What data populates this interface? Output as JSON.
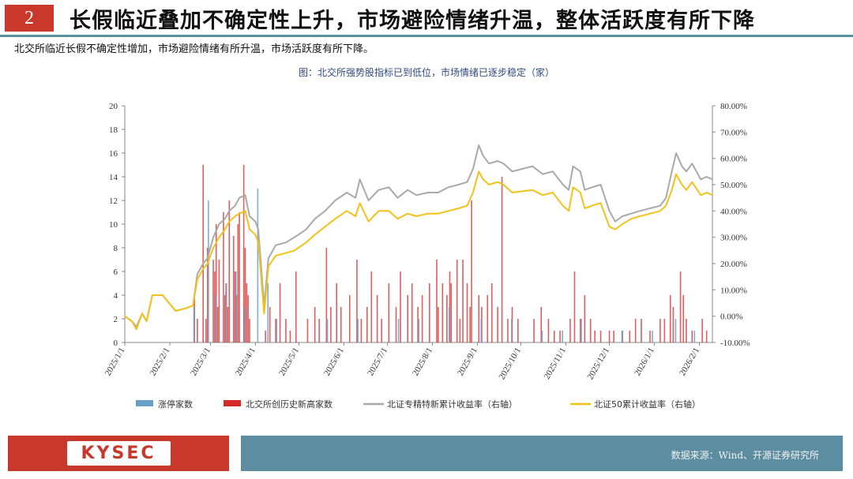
{
  "header": {
    "number": "2",
    "title": "长假临近叠加不确定性上升，市场避险情绪升温，整体活跃度有所下降",
    "subtitle": "北交所临近长假不确定性增加，市场避险情绪有所升温，市场活跃度有所下降。"
  },
  "footer": {
    "logo": "KYSEC",
    "source": "数据来源：Wind、开源证券研究所"
  },
  "colors": {
    "brand_red": "#c8392b",
    "brand_teal": "#5d8da0",
    "limit_up": "#6aa0c8",
    "new_high": "#d42a2a",
    "specialized": "#a9a9a9",
    "bz50": "#f2c21b"
  },
  "chart_data": {
    "type": "bar+line",
    "title": "图：北交所强势股指标已到低位，市场情绪已逐步稳定（家）",
    "x_start": "2025-01-01",
    "x_end": "2026-02-10",
    "x_ticks": [
      "2025/1/1",
      "2025/2/1",
      "2025/3/1",
      "2025/4/1",
      "2025/5/1",
      "2025/6/1",
      "2025/7/1",
      "2025/8/1",
      "2025/9/1",
      "2025/10/1",
      "2025/11/1",
      "2025/12/1",
      "2026/1/1",
      "2026/2/1"
    ],
    "y_left": {
      "min": 0,
      "max": 20,
      "ticks": [
        0,
        2,
        4,
        6,
        8,
        10,
        12,
        14,
        16,
        18,
        20
      ]
    },
    "y_right": {
      "min": -0.1,
      "max": 0.8,
      "ticks": [
        "-10.00%",
        "0.00%",
        "10.00%",
        "20.00%",
        "30.00%",
        "40.00%",
        "50.00%",
        "60.00%",
        "70.00%",
        "80.00%"
      ]
    },
    "legend": [
      "涨停家数",
      "北交所创历史新高家数",
      "北证专精特新累计收益率（右轴）",
      "北证50累计收益率（右轴）"
    ],
    "bars_limit_up": [
      [
        "2025-02-17",
        3
      ],
      [
        "2025-02-27",
        12
      ],
      [
        "2025-03-04",
        4
      ],
      [
        "2025-03-11",
        5
      ],
      [
        "2025-03-18",
        6
      ],
      [
        "2025-03-24",
        3
      ],
      [
        "2025-04-02",
        13
      ],
      [
        "2025-04-09",
        5
      ],
      [
        "2025-04-15",
        2
      ],
      [
        "2025-05-20",
        2
      ],
      [
        "2025-06-10",
        2
      ],
      [
        "2025-07-08",
        2
      ],
      [
        "2025-07-22",
        2
      ],
      [
        "2025-08-12",
        3
      ],
      [
        "2025-09-03",
        2
      ],
      [
        "2025-09-24",
        2
      ],
      [
        "2025-10-15",
        1
      ],
      [
        "2025-10-29",
        1
      ],
      [
        "2025-11-11",
        2
      ],
      [
        "2025-12-09",
        1
      ],
      [
        "2025-12-30",
        1
      ],
      [
        "2026-01-15",
        2
      ],
      [
        "2026-01-28",
        1
      ]
    ],
    "bars_new_high": [
      [
        "2025-02-18",
        4
      ],
      [
        "2025-02-20",
        2
      ],
      [
        "2025-02-24",
        15
      ],
      [
        "2025-02-26",
        2
      ],
      [
        "2025-02-27",
        8
      ],
      [
        "2025-03-03",
        7
      ],
      [
        "2025-03-04",
        6
      ],
      [
        "2025-03-05",
        10
      ],
      [
        "2025-03-06",
        3
      ],
      [
        "2025-03-07",
        7
      ],
      [
        "2025-03-10",
        11
      ],
      [
        "2025-03-11",
        4
      ],
      [
        "2025-03-12",
        5
      ],
      [
        "2025-03-13",
        3
      ],
      [
        "2025-03-14",
        12
      ],
      [
        "2025-03-17",
        9
      ],
      [
        "2025-03-18",
        6
      ],
      [
        "2025-03-19",
        4
      ],
      [
        "2025-03-20",
        10
      ],
      [
        "2025-03-21",
        11
      ],
      [
        "2025-03-24",
        15
      ],
      [
        "2025-03-25",
        8
      ],
      [
        "2025-03-26",
        5
      ],
      [
        "2025-03-27",
        4
      ],
      [
        "2025-03-28",
        2
      ],
      [
        "2025-04-08",
        1
      ],
      [
        "2025-04-11",
        3
      ],
      [
        "2025-04-15",
        2
      ],
      [
        "2025-04-18",
        5
      ],
      [
        "2025-04-22",
        2
      ],
      [
        "2025-04-25",
        1
      ],
      [
        "2025-04-29",
        6
      ],
      [
        "2025-05-07",
        2
      ],
      [
        "2025-05-12",
        3
      ],
      [
        "2025-05-15",
        2
      ],
      [
        "2025-05-20",
        8
      ],
      [
        "2025-05-23",
        3
      ],
      [
        "2025-05-27",
        5
      ],
      [
        "2025-05-30",
        3
      ],
      [
        "2025-06-05",
        4
      ],
      [
        "2025-06-10",
        7
      ],
      [
        "2025-06-13",
        2
      ],
      [
        "2025-06-17",
        3
      ],
      [
        "2025-06-20",
        6
      ],
      [
        "2025-06-24",
        4
      ],
      [
        "2025-06-27",
        2
      ],
      [
        "2025-07-02",
        5
      ],
      [
        "2025-07-07",
        3
      ],
      [
        "2025-07-10",
        6
      ],
      [
        "2025-07-15",
        4
      ],
      [
        "2025-07-18",
        5
      ],
      [
        "2025-07-22",
        3
      ],
      [
        "2025-07-25",
        4
      ],
      [
        "2025-07-30",
        5
      ],
      [
        "2025-08-04",
        7
      ],
      [
        "2025-08-05",
        3
      ],
      [
        "2025-08-08",
        5
      ],
      [
        "2025-08-11",
        4
      ],
      [
        "2025-08-13",
        6
      ],
      [
        "2025-08-14",
        5
      ],
      [
        "2025-08-18",
        7
      ],
      [
        "2025-08-20",
        2
      ],
      [
        "2025-08-22",
        7
      ],
      [
        "2025-08-25",
        5
      ],
      [
        "2025-08-27",
        3
      ],
      [
        "2025-08-28",
        12
      ],
      [
        "2025-09-02",
        4
      ],
      [
        "2025-09-04",
        3
      ],
      [
        "2025-09-08",
        4
      ],
      [
        "2025-09-11",
        5
      ],
      [
        "2025-09-15",
        3
      ],
      [
        "2025-09-18",
        14
      ],
      [
        "2025-09-22",
        2
      ],
      [
        "2025-09-25",
        3
      ],
      [
        "2025-09-29",
        2
      ],
      [
        "2025-10-10",
        2
      ],
      [
        "2025-10-15",
        3
      ],
      [
        "2025-10-20",
        2
      ],
      [
        "2025-10-24",
        1
      ],
      [
        "2025-10-28",
        1
      ],
      [
        "2025-11-04",
        2
      ],
      [
        "2025-11-07",
        6
      ],
      [
        "2025-11-11",
        2
      ],
      [
        "2025-11-14",
        4
      ],
      [
        "2025-11-18",
        2
      ],
      [
        "2025-11-21",
        1
      ],
      [
        "2025-11-25",
        1
      ],
      [
        "2025-12-01",
        1
      ],
      [
        "2025-12-04",
        1
      ],
      [
        "2025-12-10",
        1
      ],
      [
        "2025-12-15",
        1
      ],
      [
        "2025-12-19",
        2
      ],
      [
        "2025-12-23",
        2
      ],
      [
        "2025-12-29",
        1
      ],
      [
        "2026-01-05",
        2
      ],
      [
        "2026-01-08",
        2
      ],
      [
        "2026-01-12",
        4
      ],
      [
        "2026-01-14",
        3
      ],
      [
        "2026-01-19",
        6
      ],
      [
        "2026-01-21",
        4
      ],
      [
        "2026-01-23",
        2
      ],
      [
        "2026-01-27",
        1
      ],
      [
        "2026-02-03",
        2
      ],
      [
        "2026-02-06",
        1
      ]
    ],
    "line_specialized": [
      [
        "2025-01-01",
        0.0
      ],
      [
        "2025-01-06",
        -0.02
      ],
      [
        "2025-01-09",
        -0.04
      ],
      [
        "2025-01-13",
        0.01
      ],
      [
        "2025-01-16",
        -0.02
      ],
      [
        "2025-01-20",
        0.08
      ],
      [
        "2025-01-27",
        0.08
      ],
      [
        "2025-02-05",
        0.02
      ],
      [
        "2025-02-12",
        0.03
      ],
      [
        "2025-02-17",
        0.04
      ],
      [
        "2025-02-20",
        0.16
      ],
      [
        "2025-02-24",
        0.2
      ],
      [
        "2025-02-27",
        0.22
      ],
      [
        "2025-03-03",
        0.3
      ],
      [
        "2025-03-07",
        0.35
      ],
      [
        "2025-03-11",
        0.37
      ],
      [
        "2025-03-14",
        0.4
      ],
      [
        "2025-03-18",
        0.42
      ],
      [
        "2025-03-21",
        0.45
      ],
      [
        "2025-03-25",
        0.46
      ],
      [
        "2025-03-28",
        0.38
      ],
      [
        "2025-04-01",
        0.36
      ],
      [
        "2025-04-03",
        0.33
      ],
      [
        "2025-04-07",
        0.04
      ],
      [
        "2025-04-10",
        0.22
      ],
      [
        "2025-04-15",
        0.27
      ],
      [
        "2025-04-22",
        0.28
      ],
      [
        "2025-04-28",
        0.3
      ],
      [
        "2025-05-06",
        0.33
      ],
      [
        "2025-05-12",
        0.37
      ],
      [
        "2025-05-19",
        0.4
      ],
      [
        "2025-05-26",
        0.44
      ],
      [
        "2025-06-03",
        0.47
      ],
      [
        "2025-06-09",
        0.45
      ],
      [
        "2025-06-12",
        0.52
      ],
      [
        "2025-06-18",
        0.44
      ],
      [
        "2025-06-25",
        0.48
      ],
      [
        "2025-07-02",
        0.49
      ],
      [
        "2025-07-08",
        0.45
      ],
      [
        "2025-07-15",
        0.48
      ],
      [
        "2025-07-21",
        0.46
      ],
      [
        "2025-07-29",
        0.47
      ],
      [
        "2025-08-05",
        0.47
      ],
      [
        "2025-08-12",
        0.49
      ],
      [
        "2025-08-19",
        0.5
      ],
      [
        "2025-08-25",
        0.51
      ],
      [
        "2025-08-29",
        0.56
      ],
      [
        "2025-09-02",
        0.65
      ],
      [
        "2025-09-05",
        0.61
      ],
      [
        "2025-09-09",
        0.58
      ],
      [
        "2025-09-15",
        0.59
      ],
      [
        "2025-09-19",
        0.58
      ],
      [
        "2025-09-25",
        0.55
      ],
      [
        "2025-10-09",
        0.57
      ],
      [
        "2025-10-16",
        0.54
      ],
      [
        "2025-10-23",
        0.55
      ],
      [
        "2025-10-30",
        0.5
      ],
      [
        "2025-11-03",
        0.48
      ],
      [
        "2025-11-06",
        0.57
      ],
      [
        "2025-11-11",
        0.55
      ],
      [
        "2025-11-14",
        0.48
      ],
      [
        "2025-11-19",
        0.49
      ],
      [
        "2025-11-25",
        0.5
      ],
      [
        "2025-12-01",
        0.4
      ],
      [
        "2025-12-05",
        0.36
      ],
      [
        "2025-12-10",
        0.38
      ],
      [
        "2025-12-16",
        0.39
      ],
      [
        "2025-12-22",
        0.4
      ],
      [
        "2025-12-29",
        0.41
      ],
      [
        "2026-01-05",
        0.42
      ],
      [
        "2026-01-09",
        0.45
      ],
      [
        "2026-01-13",
        0.55
      ],
      [
        "2026-01-16",
        0.62
      ],
      [
        "2026-01-20",
        0.57
      ],
      [
        "2026-01-23",
        0.55
      ],
      [
        "2026-01-27",
        0.58
      ],
      [
        "2026-02-02",
        0.52
      ],
      [
        "2026-02-06",
        0.53
      ],
      [
        "2026-02-10",
        0.52
      ]
    ],
    "line_bz50": [
      [
        "2025-01-01",
        0.0
      ],
      [
        "2025-01-06",
        -0.02
      ],
      [
        "2025-01-09",
        -0.05
      ],
      [
        "2025-01-13",
        0.01
      ],
      [
        "2025-01-16",
        -0.02
      ],
      [
        "2025-01-20",
        0.08
      ],
      [
        "2025-01-27",
        0.08
      ],
      [
        "2025-02-05",
        0.02
      ],
      [
        "2025-02-12",
        0.03
      ],
      [
        "2025-02-17",
        0.04
      ],
      [
        "2025-02-20",
        0.14
      ],
      [
        "2025-02-24",
        0.18
      ],
      [
        "2025-02-27",
        0.2
      ],
      [
        "2025-03-03",
        0.26
      ],
      [
        "2025-03-07",
        0.3
      ],
      [
        "2025-03-11",
        0.33
      ],
      [
        "2025-03-14",
        0.36
      ],
      [
        "2025-03-18",
        0.38
      ],
      [
        "2025-03-21",
        0.39
      ],
      [
        "2025-03-25",
        0.4
      ],
      [
        "2025-03-28",
        0.33
      ],
      [
        "2025-04-01",
        0.31
      ],
      [
        "2025-04-03",
        0.28
      ],
      [
        "2025-04-07",
        0.01
      ],
      [
        "2025-04-10",
        0.19
      ],
      [
        "2025-04-15",
        0.23
      ],
      [
        "2025-04-22",
        0.24
      ],
      [
        "2025-04-28",
        0.25
      ],
      [
        "2025-05-06",
        0.28
      ],
      [
        "2025-05-12",
        0.31
      ],
      [
        "2025-05-19",
        0.34
      ],
      [
        "2025-05-26",
        0.37
      ],
      [
        "2025-06-03",
        0.4
      ],
      [
        "2025-06-09",
        0.38
      ],
      [
        "2025-06-12",
        0.43
      ],
      [
        "2025-06-18",
        0.36
      ],
      [
        "2025-06-25",
        0.4
      ],
      [
        "2025-07-02",
        0.4
      ],
      [
        "2025-07-08",
        0.37
      ],
      [
        "2025-07-15",
        0.39
      ],
      [
        "2025-07-21",
        0.38
      ],
      [
        "2025-07-29",
        0.39
      ],
      [
        "2025-08-05",
        0.39
      ],
      [
        "2025-08-12",
        0.4
      ],
      [
        "2025-08-19",
        0.41
      ],
      [
        "2025-08-25",
        0.42
      ],
      [
        "2025-08-29",
        0.47
      ],
      [
        "2025-09-02",
        0.55
      ],
      [
        "2025-09-05",
        0.52
      ],
      [
        "2025-09-09",
        0.5
      ],
      [
        "2025-09-15",
        0.51
      ],
      [
        "2025-09-19",
        0.5
      ],
      [
        "2025-09-25",
        0.47
      ],
      [
        "2025-10-09",
        0.48
      ],
      [
        "2025-10-16",
        0.46
      ],
      [
        "2025-10-23",
        0.47
      ],
      [
        "2025-10-30",
        0.42
      ],
      [
        "2025-11-03",
        0.4
      ],
      [
        "2025-11-06",
        0.49
      ],
      [
        "2025-11-11",
        0.47
      ],
      [
        "2025-11-14",
        0.41
      ],
      [
        "2025-11-19",
        0.42
      ],
      [
        "2025-11-25",
        0.43
      ],
      [
        "2025-12-01",
        0.34
      ],
      [
        "2025-12-05",
        0.33
      ],
      [
        "2025-12-10",
        0.35
      ],
      [
        "2025-12-16",
        0.37
      ],
      [
        "2025-12-22",
        0.38
      ],
      [
        "2025-12-29",
        0.39
      ],
      [
        "2026-01-05",
        0.4
      ],
      [
        "2026-01-09",
        0.42
      ],
      [
        "2026-01-13",
        0.48
      ],
      [
        "2026-01-16",
        0.54
      ],
      [
        "2026-01-20",
        0.5
      ],
      [
        "2026-01-23",
        0.48
      ],
      [
        "2026-01-27",
        0.51
      ],
      [
        "2026-02-02",
        0.46
      ],
      [
        "2026-02-06",
        0.47
      ],
      [
        "2026-02-10",
        0.46
      ]
    ]
  }
}
